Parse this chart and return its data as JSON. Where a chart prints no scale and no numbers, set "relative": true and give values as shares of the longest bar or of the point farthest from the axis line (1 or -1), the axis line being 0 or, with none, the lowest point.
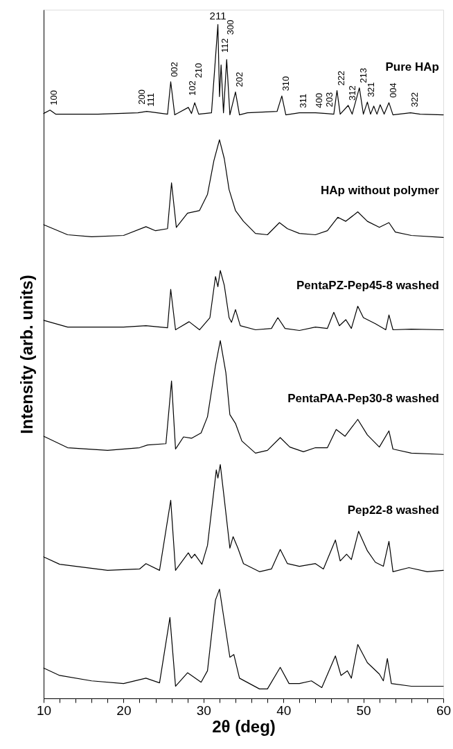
{
  "chart_data": {
    "type": "line",
    "relative": true,
    "xlabel": "2θ (deg)",
    "ylabel": "Intensity (arb. units)",
    "xlim": [
      10,
      60
    ],
    "xticks": [
      10,
      {
        "value": 12,
        "label": null
      },
      {
        "value": 14,
        "label": null
      },
      {
        "value": 16,
        "label": null
      },
      {
        "value": 18,
        "label": null
      },
      20,
      {
        "value": 22,
        "label": null
      },
      {
        "value": 24,
        "label": null
      },
      {
        "value": 26,
        "label": null
      },
      {
        "value": 28,
        "label": null
      },
      30,
      {
        "value": 32,
        "label": null
      },
      {
        "value": 34,
        "label": null
      },
      {
        "value": 36,
        "label": null
      },
      {
        "value": 38,
        "label": null
      },
      40,
      {
        "value": 42,
        "label": null
      },
      {
        "value": 44,
        "label": null
      },
      {
        "value": 46,
        "label": null
      },
      {
        "value": 48,
        "label": null
      },
      50,
      {
        "value": 52,
        "label": null
      },
      {
        "value": 54,
        "label": null
      },
      {
        "value": 56,
        "label": null
      },
      {
        "value": 58,
        "label": null
      },
      60
    ],
    "grid": false,
    "legend": false,
    "series": [
      {
        "name": "Pure HAp",
        "color": "#000000",
        "x": [
          10,
          10.8,
          11.5,
          16.8,
          21.8,
          22.9,
          25.5,
          25.9,
          26.4,
          28.1,
          28.5,
          28.9,
          29.4,
          31.0,
          31.8,
          32.0,
          32.2,
          32.5,
          32.9,
          33.3,
          34.0,
          34.5,
          35.5,
          39.2,
          39.8,
          40.3,
          42.0,
          44.0,
          45.3,
          46.3,
          46.7,
          47.1,
          48.1,
          48.6,
          49.5,
          50.0,
          50.5,
          50.9,
          51.3,
          51.7,
          52.1,
          52.6,
          53.2,
          53.7,
          55.9,
          57.1,
          60
        ],
        "values": [
          0.868,
          0.873,
          0.867,
          0.867,
          0.869,
          0.871,
          0.867,
          0.915,
          0.866,
          0.877,
          0.868,
          0.884,
          0.867,
          0.869,
          1.0,
          0.893,
          0.94,
          0.869,
          0.948,
          0.866,
          0.9,
          0.866,
          0.869,
          0.871,
          0.894,
          0.866,
          0.869,
          0.869,
          0.868,
          0.867,
          0.902,
          0.867,
          0.88,
          0.867,
          0.906,
          0.867,
          0.885,
          0.867,
          0.879,
          0.867,
          0.881,
          0.867,
          0.884,
          0.866,
          0.869,
          0.867,
          0.866
        ]
      },
      {
        "name": "HAp without polymer",
        "color": "#000000",
        "x": [
          10,
          13,
          16,
          20,
          22.8,
          24,
          25.5,
          26.0,
          26.6,
          28,
          29.5,
          30.5,
          31.3,
          32.0,
          32.6,
          33.2,
          34,
          35,
          36.5,
          38,
          39.5,
          40.5,
          42,
          44,
          45.5,
          46.8,
          47.8,
          49.3,
          50.5,
          52.0,
          53.2,
          54,
          56,
          60
        ],
        "values": [
          0.703,
          0.688,
          0.685,
          0.687,
          0.7,
          0.694,
          0.697,
          0.765,
          0.699,
          0.72,
          0.724,
          0.748,
          0.798,
          0.829,
          0.801,
          0.755,
          0.724,
          0.708,
          0.69,
          0.688,
          0.706,
          0.697,
          0.69,
          0.688,
          0.694,
          0.714,
          0.708,
          0.722,
          0.708,
          0.699,
          0.706,
          0.692,
          0.687,
          0.684
        ]
      },
      {
        "name": "PentaPZ-Pep45-8 washed",
        "color": "#000000",
        "x": [
          10,
          13,
          20,
          22.8,
          25.5,
          25.9,
          26.5,
          28.2,
          29.5,
          30.8,
          31.5,
          31.8,
          32.1,
          32.6,
          33.2,
          33.5,
          34.0,
          34.6,
          36.5,
          38.5,
          39.3,
          40.2,
          42,
          44,
          45.5,
          46.3,
          47.0,
          47.8,
          48.5,
          49.3,
          50.0,
          51.5,
          52.8,
          53.2,
          53.7,
          56,
          60
        ],
        "values": [
          0.561,
          0.551,
          0.551,
          0.553,
          0.55,
          0.607,
          0.547,
          0.559,
          0.547,
          0.565,
          0.626,
          0.611,
          0.635,
          0.613,
          0.565,
          0.558,
          0.577,
          0.553,
          0.547,
          0.549,
          0.565,
          0.549,
          0.546,
          0.551,
          0.549,
          0.573,
          0.553,
          0.562,
          0.549,
          0.582,
          0.565,
          0.556,
          0.547,
          0.569,
          0.547,
          0.548,
          0.547
        ]
      },
      {
        "name": "PentaPAA-Pep30-8 washed",
        "color": "#000000",
        "x": [
          10,
          13,
          18,
          22,
          23,
          25.3,
          26.0,
          26.5,
          27.5,
          28.5,
          29.7,
          30.5,
          31.5,
          32.1,
          32.8,
          33.3,
          34,
          34.8,
          36.5,
          38,
          39.6,
          40.8,
          42.5,
          44,
          45.5,
          46.6,
          47.7,
          49.3,
          50.5,
          52.0,
          53.2,
          53.7,
          56,
          60
        ],
        "values": [
          0.389,
          0.372,
          0.368,
          0.372,
          0.376,
          0.378,
          0.471,
          0.37,
          0.388,
          0.386,
          0.394,
          0.418,
          0.494,
          0.531,
          0.483,
          0.421,
          0.408,
          0.382,
          0.364,
          0.368,
          0.387,
          0.373,
          0.366,
          0.372,
          0.372,
          0.399,
          0.389,
          0.414,
          0.391,
          0.373,
          0.397,
          0.37,
          0.364,
          0.362
        ]
      },
      {
        "name": "Pep22-8 washed",
        "color": "#000000",
        "x": [
          10,
          12,
          18,
          22,
          22.8,
          24.5,
          25.9,
          26.5,
          28.1,
          28.5,
          28.9,
          29.8,
          30.5,
          31.6,
          31.8,
          32.1,
          32.6,
          33.3,
          33.7,
          34.3,
          35,
          37,
          38.5,
          39.6,
          40.5,
          42,
          44,
          45,
          46.5,
          47.1,
          47.9,
          48.5,
          49.4,
          50.5,
          51.5,
          52.5,
          53.2,
          53.7,
          55.7,
          58,
          60
        ],
        "values": [
          0.21,
          0.199,
          0.19,
          0.192,
          0.2,
          0.19,
          0.294,
          0.19,
          0.216,
          0.208,
          0.214,
          0.199,
          0.227,
          0.339,
          0.327,
          0.347,
          0.296,
          0.223,
          0.24,
          0.223,
          0.2,
          0.188,
          0.192,
          0.221,
          0.2,
          0.196,
          0.2,
          0.192,
          0.235,
          0.204,
          0.214,
          0.206,
          0.248,
          0.219,
          0.202,
          0.196,
          0.233,
          0.188,
          0.194,
          0.188,
          0.19
        ]
      },
      {
        "color": "#000000",
        "x": [
          10,
          12,
          16,
          20,
          22.8,
          24.5,
          25.8,
          26.5,
          28.0,
          28.5,
          29.7,
          30.5,
          31.5,
          32.0,
          32.5,
          33.3,
          33.8,
          34.5,
          37,
          38,
          39.6,
          40.7,
          42,
          43.5,
          44.8,
          46.5,
          47.2,
          48.0,
          48.5,
          49.3,
          50.5,
          52.0,
          52.5,
          53.0,
          53.5,
          56,
          60
        ],
        "values": [
          0.045,
          0.034,
          0.026,
          0.022,
          0.03,
          0.023,
          0.12,
          0.018,
          0.038,
          0.034,
          0.024,
          0.041,
          0.146,
          0.162,
          0.123,
          0.061,
          0.065,
          0.03,
          0.014,
          0.014,
          0.046,
          0.022,
          0.022,
          0.026,
          0.016,
          0.063,
          0.034,
          0.041,
          0.03,
          0.08,
          0.053,
          0.036,
          0.026,
          0.059,
          0.022,
          0.018,
          0.018
        ]
      }
    ],
    "annotations": [
      {
        "text": "100",
        "x": 10.8,
        "y": 0.873
      },
      {
        "text": "200",
        "x": 21.8,
        "y": 0.869
      },
      {
        "text": "111",
        "x": 22.9,
        "y": 0.871
      },
      {
        "text": "002",
        "x": 25.9,
        "y": 0.915
      },
      {
        "text": "102",
        "x": 28.1,
        "y": 0.877
      },
      {
        "text": "210",
        "x": 28.9,
        "y": 0.884
      },
      {
        "text": "211",
        "x": 31.8,
        "y": 1.0
      },
      {
        "text": "112",
        "x": 32.2,
        "y": 0.94
      },
      {
        "text": "300",
        "x": 32.9,
        "y": 0.948
      },
      {
        "text": "202",
        "x": 34.0,
        "y": 0.9
      },
      {
        "text": "310",
        "x": 39.8,
        "y": 0.894
      },
      {
        "text": "311",
        "x": 42.0,
        "y": 0.869
      },
      {
        "text": "400",
        "x": 44.0,
        "y": 0.869
      },
      {
        "text": "203",
        "x": 45.3,
        "y": 0.868
      },
      {
        "text": "222",
        "x": 46.7,
        "y": 0.902
      },
      {
        "text": "312",
        "x": 48.1,
        "y": 0.88
      },
      {
        "text": "213",
        "x": 49.5,
        "y": 0.906
      },
      {
        "text": "321",
        "x": 50.5,
        "y": 0.885
      },
      {
        "text": "004",
        "x": 53.2,
        "y": 0.884
      },
      {
        "text": "322",
        "x": 55.9,
        "y": 0.869
      }
    ]
  }
}
